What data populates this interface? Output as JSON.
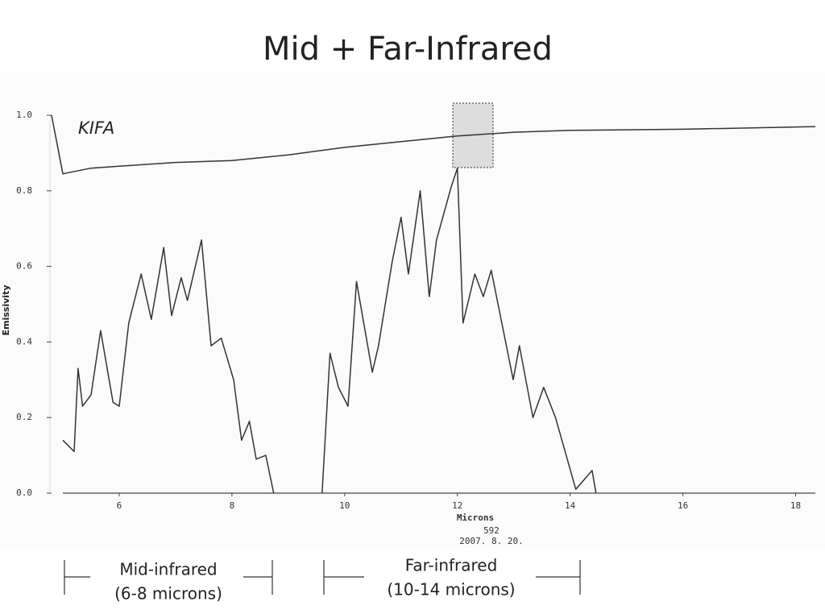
{
  "chart_data": {
    "type": "line",
    "title": "Mid + Far-Infrared",
    "annotation": "KIFA",
    "y_label": "Emissivity",
    "x_label": "Microns",
    "footer_lines": [
      "592",
      "2007.  8.  20."
    ],
    "ranges": [
      {
        "label": "Mid-infrared",
        "sublabel": "(6-8  microns)"
      },
      {
        "label": "Far-infrared",
        "sublabel": "(10-14 microns)"
      }
    ],
    "xlim": [
      4.8,
      18.35
    ],
    "ylim": [
      0,
      1.0
    ],
    "xticks": [
      6,
      8,
      10,
      12,
      14,
      16,
      18
    ],
    "yticks": [
      {
        "value": 0,
        "label": "0.0"
      },
      0.2,
      0.4,
      0.6,
      0.8,
      {
        "value": 1.0,
        "label": "1.0"
      }
    ],
    "series": [
      {
        "color": "#333333",
        "x": [
          4.8,
          5.0,
          5.5,
          6,
          7,
          8,
          9,
          10,
          11,
          12,
          13,
          14,
          16,
          18.35
        ],
        "values": [
          1.0,
          0.845,
          0.86,
          0.865,
          0.875,
          0.88,
          0.895,
          0.915,
          0.93,
          0.945,
          0.955,
          0.96,
          0.963,
          0.97
        ]
      },
      {
        "color": "#333333",
        "x": [
          5.0,
          5.2,
          5.27,
          5.35,
          5.5,
          5.67,
          5.89,
          6.0,
          6.17,
          6.39,
          6.57,
          6.79,
          6.93,
          7.1,
          7.21,
          7.46,
          7.63,
          7.81,
          8.03,
          8.17,
          8.31,
          8.43,
          8.6,
          8.74,
          9.2,
          9.6,
          9.74,
          9.89,
          10.06,
          10.21,
          10.49,
          10.6,
          10.84,
          11.0,
          11.13,
          11.34,
          11.5,
          11.63,
          11.89,
          12.0,
          12.1,
          12.31,
          12.46,
          12.6,
          12.99,
          13.1,
          13.34,
          13.53,
          13.74,
          14.1,
          14.39,
          14.46
        ],
        "values": [
          0.14,
          0.11,
          0.33,
          0.23,
          0.26,
          0.43,
          0.24,
          0.23,
          0.45,
          0.58,
          0.46,
          0.65,
          0.47,
          0.57,
          0.51,
          0.67,
          0.39,
          0.41,
          0.3,
          0.14,
          0.19,
          0.09,
          0.1,
          0.0,
          null,
          0.0,
          0.37,
          0.28,
          0.23,
          0.56,
          0.32,
          0.39,
          0.61,
          0.73,
          0.58,
          0.8,
          0.52,
          0.67,
          0.81,
          0.86,
          0.45,
          0.58,
          0.52,
          0.59,
          0.3,
          0.39,
          0.2,
          0.28,
          0.2,
          0.01,
          0.06,
          0.0
        ]
      }
    ]
  }
}
